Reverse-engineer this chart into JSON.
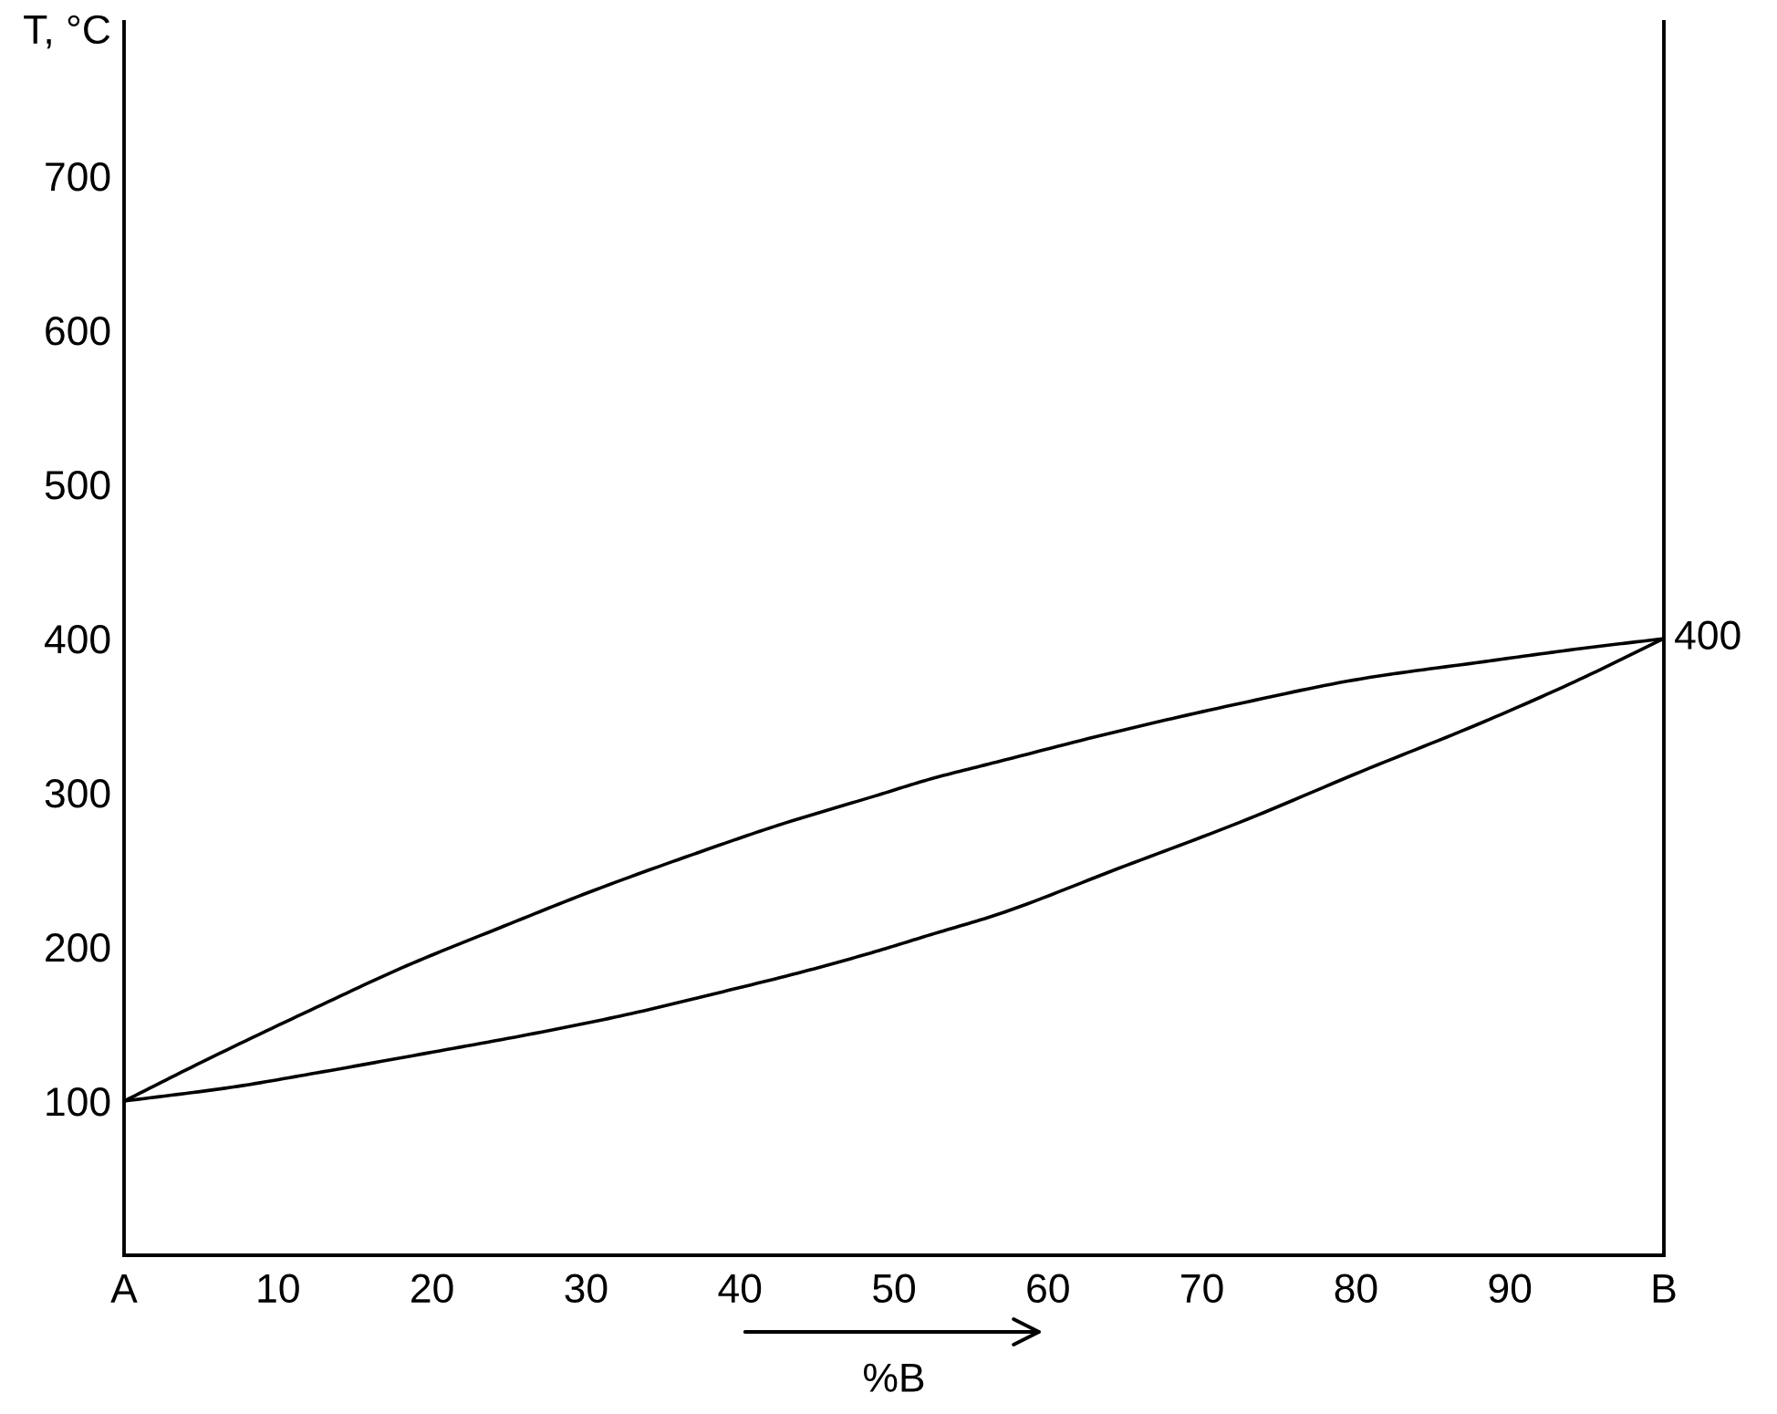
{
  "chart_data": {
    "type": "line",
    "xlabel": "%B",
    "ylabel": "T, °C",
    "xlim": [
      0,
      100
    ],
    "ylim": [
      0,
      800
    ],
    "xticks": [
      {
        "value": 0,
        "label": "A"
      },
      10,
      20,
      30,
      40,
      50,
      60,
      70,
      80,
      90,
      {
        "value": 100,
        "label": "B"
      }
    ],
    "yticks": [
      100,
      200,
      300,
      400,
      500,
      600,
      700
    ],
    "grid": false,
    "marker": "none",
    "line_style": "solid",
    "annotations": [
      {
        "text": "400",
        "x": 100,
        "y": 400
      }
    ],
    "series": [
      {
        "color": "#000000",
        "x": [
          0,
          5.4,
          12.1,
          18.4,
          24.3,
          30.6,
          37.8,
          42.5,
          48.8,
          52.4,
          56.7,
          64.6,
          72.5,
          80.4,
          88.3,
          94.2,
          100
        ],
        "values": [
          100,
          127,
          159,
          188,
          212,
          237,
          263,
          279,
          298,
          309,
          320,
          340,
          358,
          374,
          385,
          393,
          400
        ]
      },
      {
        "color": "#000000",
        "x": [
          0,
          7,
          12.9,
          19.6,
          26.7,
          32.6,
          38.5,
          44.5,
          48.8,
          52.4,
          56.7,
          64.6,
          72.5,
          80.4,
          88.3,
          94.2,
          100
        ],
        "values": [
          100,
          109,
          119,
          131,
          144,
          156,
          170,
          185,
          197,
          208,
          221,
          251,
          281,
          314,
          346,
          372,
          400
        ]
      }
    ]
  }
}
